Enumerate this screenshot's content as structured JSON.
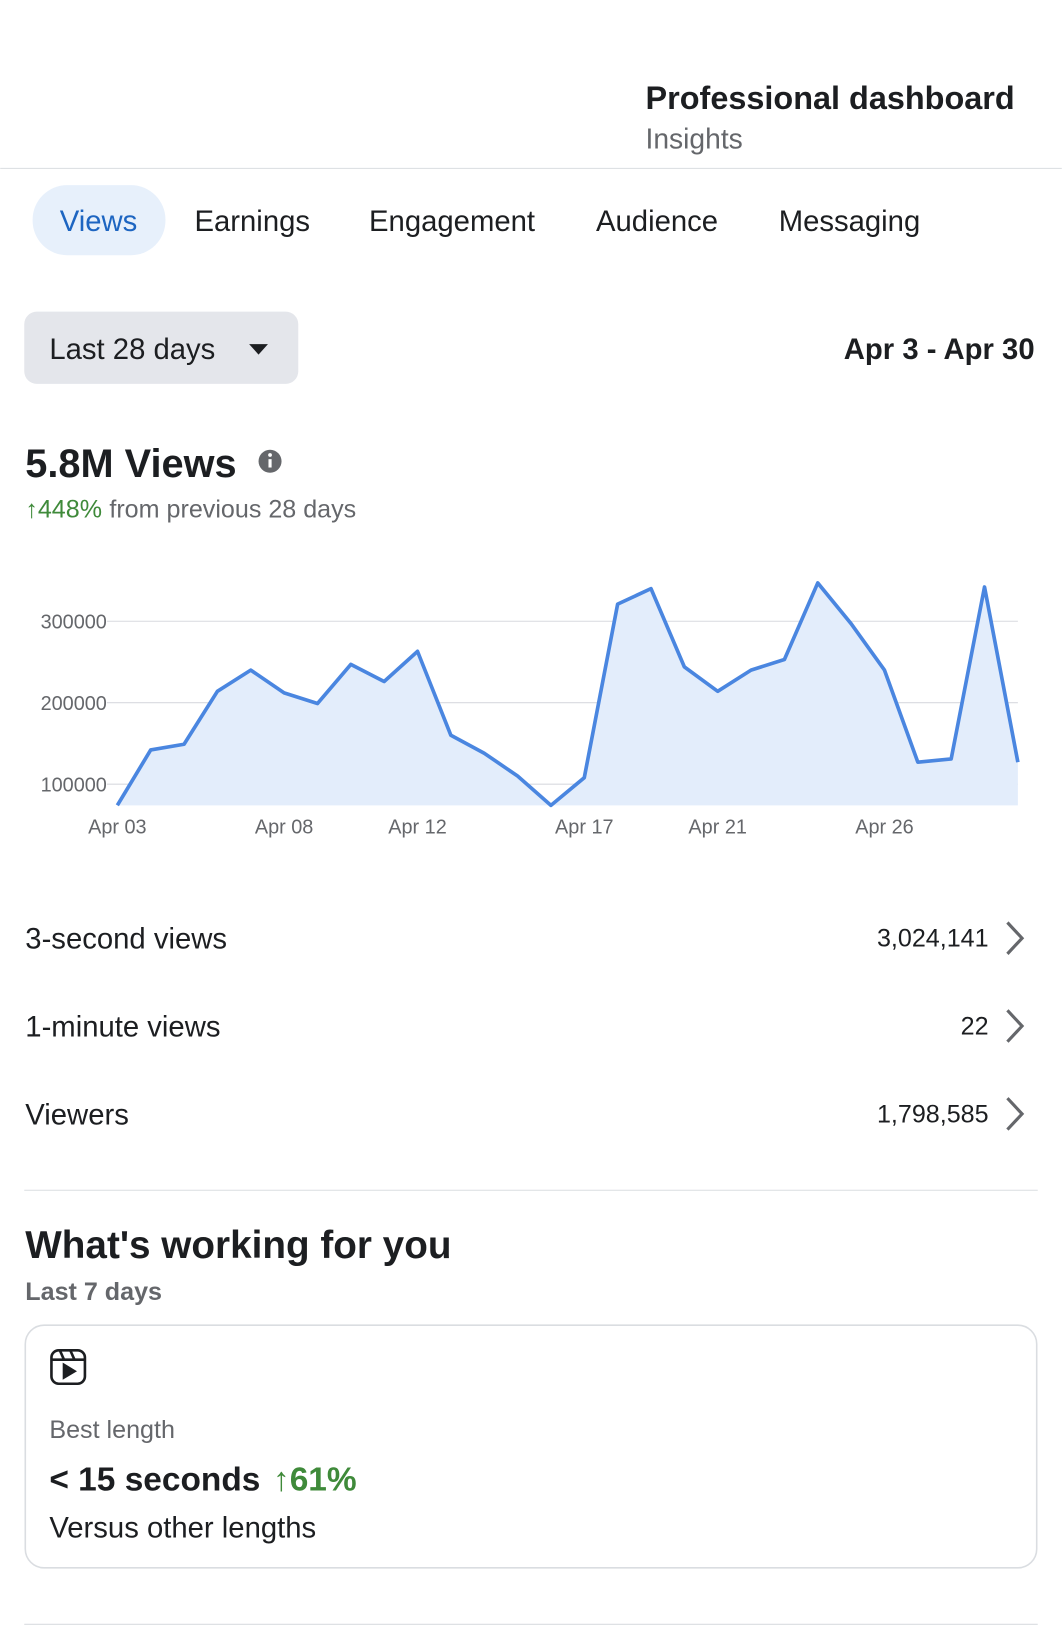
{
  "header": {
    "title": "Professional dashboard",
    "subtitle": "Insights"
  },
  "tabs": [
    "Views",
    "Earnings",
    "Engagement",
    "Audience",
    "Messaging"
  ],
  "filter": {
    "period": "Last 28 days",
    "range": "Apr 3 - Apr 30"
  },
  "summary": {
    "total": "5.8M Views",
    "change": "↑448%",
    "change_text": "from previous 28 days"
  },
  "chart_data": {
    "type": "area",
    "color": "#4a86e0",
    "fill": "#e3edfb",
    "grid": true,
    "categories": [
      "Apr 03",
      null,
      null,
      null,
      null,
      "Apr 08",
      null,
      null,
      null,
      "Apr 12",
      null,
      null,
      null,
      null,
      "Apr 17",
      null,
      null,
      null,
      "Apr 21",
      null,
      null,
      null,
      null,
      "Apr 26",
      null,
      null,
      null,
      null
    ],
    "values": [
      74000,
      142000,
      149000,
      214000,
      240000,
      212000,
      199000,
      247000,
      226000,
      263000,
      160000,
      138000,
      110000,
      74000,
      108000,
      321000,
      340000,
      244000,
      214000,
      240000,
      253000,
      347000,
      297000,
      240000,
      127000,
      131000,
      342000,
      127000
    ],
    "ylim": [
      74000,
      350000
    ],
    "yticks": [
      100000,
      200000,
      300000
    ]
  },
  "metrics": [
    {
      "label": "3-second views",
      "value": "3,024,141"
    },
    {
      "label": "1-minute views",
      "value": "22"
    },
    {
      "label": "Viewers",
      "value": "1,798,585"
    }
  ],
  "section": {
    "title": "What's working for you",
    "subtitle": "Last 7 days",
    "card": {
      "label": "Best length",
      "value": "< 15 seconds",
      "change": "↑61%",
      "note": "Versus other lengths"
    }
  }
}
